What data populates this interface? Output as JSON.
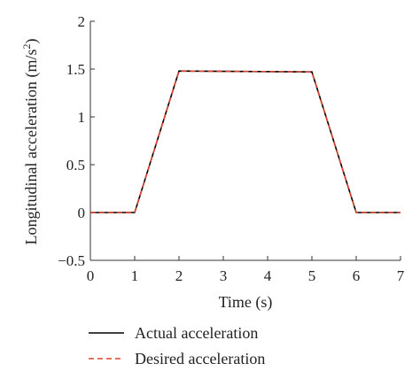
{
  "chart_data": {
    "type": "line",
    "title": "",
    "xlabel": "Time (s)",
    "ylabel": "Longitudinal acceleration (m/s²)",
    "ylabel_main": "Longitudinal acceleration (m/s",
    "ylabel_sup": "2",
    "ylabel_close": ")",
    "xlim": [
      0,
      7
    ],
    "ylim": [
      -0.5,
      2
    ],
    "x_ticks": [
      "0",
      "1",
      "2",
      "3",
      "4",
      "5",
      "6",
      "7"
    ],
    "y_ticks": [
      "−0.5",
      "0",
      "0.5",
      "1",
      "1.5",
      "2"
    ],
    "x_tick_values": [
      0,
      1,
      2,
      3,
      4,
      5,
      6,
      7
    ],
    "y_tick_values": [
      -0.5,
      0,
      0.5,
      1,
      1.5,
      2
    ],
    "grid": false,
    "legend_position": "bottom-left, below plot",
    "series": [
      {
        "name": "Actual acceleration",
        "color": "#000000",
        "style": "solid",
        "x": [
          0,
          1,
          2,
          5,
          6,
          7
        ],
        "y": [
          0,
          0,
          1.48,
          1.47,
          0,
          0
        ]
      },
      {
        "name": "Desired acceleration",
        "color": "#e0432f",
        "style": "dashed",
        "x": [
          0,
          1,
          2,
          5,
          6,
          7
        ],
        "y": [
          0,
          0,
          1.48,
          1.47,
          0,
          0
        ]
      }
    ]
  }
}
